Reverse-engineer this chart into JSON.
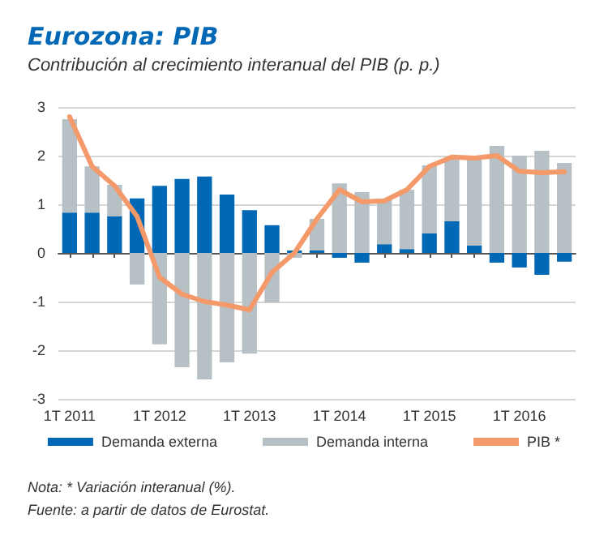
{
  "chart_data": {
    "type": "bar",
    "title": "Eurozona: PIB",
    "subtitle": "Contribución al crecimiento interanual del PIB (p. p.)",
    "categories": [
      "1T 2011",
      null,
      null,
      null,
      "1T 2012",
      null,
      null,
      null,
      "1T 2013",
      null,
      null,
      null,
      "1T 2014",
      null,
      null,
      null,
      "1T 2015",
      null,
      null,
      null,
      "1T 2016",
      null,
      null
    ],
    "stacked": true,
    "series": [
      {
        "name": "Demanda externa",
        "color": "#0068b4",
        "values": [
          0.83,
          0.83,
          0.75,
          1.12,
          1.38,
          1.52,
          1.57,
          1.2,
          0.88,
          0.57,
          0.05,
          0.05,
          -0.1,
          -0.2,
          0.18,
          0.08,
          0.4,
          0.65,
          0.15,
          -0.2,
          -0.3,
          -0.45,
          -0.18
        ]
      },
      {
        "name": "Demanda interna",
        "color": "#b6c0c5",
        "values": [
          1.92,
          0.95,
          0.65,
          -0.65,
          -1.88,
          -2.35,
          -2.6,
          -2.25,
          -2.07,
          -1.02,
          -0.1,
          0.65,
          1.43,
          1.25,
          0.92,
          1.22,
          1.4,
          1.3,
          1.8,
          2.2,
          2.0,
          2.1,
          1.85
        ]
      },
      {
        "name": "PIB *",
        "type": "line",
        "color": "#f4996a",
        "values": [
          2.8,
          1.78,
          1.38,
          0.75,
          -0.5,
          -0.85,
          -1.0,
          -1.07,
          -1.17,
          -0.4,
          0.0,
          0.7,
          1.3,
          1.05,
          1.07,
          1.3,
          1.78,
          1.97,
          1.95,
          2.0,
          1.68,
          1.65,
          1.67
        ]
      }
    ],
    "ylim": [
      -3,
      3
    ],
    "yticks": [
      -3,
      -2,
      -1,
      0,
      1,
      2,
      3
    ],
    "grid": "y",
    "legend": "bottom",
    "marker": "none",
    "line_style": "solid",
    "annotations": [
      "Nota: * Variación interanual (%).",
      "Fuente: a partir de datos de Eurostat."
    ]
  }
}
